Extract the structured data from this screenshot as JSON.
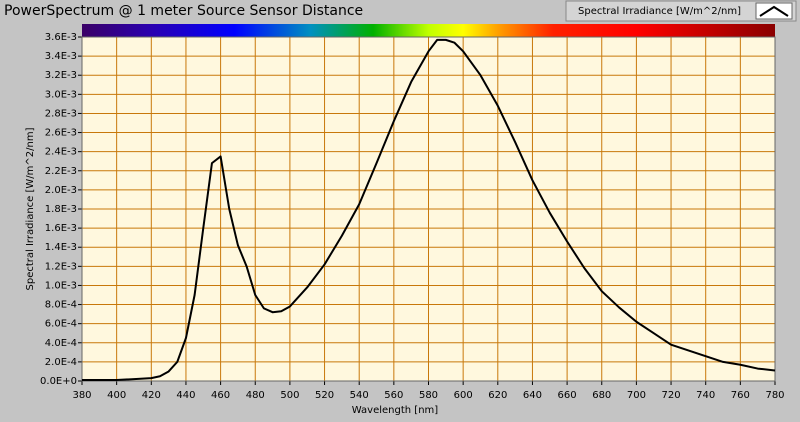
{
  "chart_data": {
    "type": "line",
    "title": "PowerSpectrum @ 1 meter Source Sensor Distance",
    "xlabel": "Wavelength [nm]",
    "ylabel": "Spectral Irradiance [W/m^2/nm]",
    "x": [
      380,
      390,
      400,
      410,
      420,
      425,
      430,
      435,
      440,
      445,
      450,
      455,
      460,
      465,
      470,
      475,
      480,
      485,
      490,
      495,
      500,
      510,
      520,
      530,
      540,
      550,
      560,
      570,
      580,
      585,
      590,
      595,
      600,
      610,
      620,
      630,
      640,
      650,
      660,
      670,
      680,
      690,
      700,
      710,
      720,
      730,
      740,
      750,
      760,
      770,
      780
    ],
    "series": [
      {
        "name": "Spectral Irradiance [W/m^2/nm]",
        "color": "#000000",
        "values": [
          1e-05,
          1e-05,
          1e-05,
          2e-05,
          3e-05,
          5e-05,
          0.0001,
          0.0002,
          0.00045,
          0.0009,
          0.0016,
          0.00228,
          0.00235,
          0.0018,
          0.00142,
          0.0012,
          0.0009,
          0.00076,
          0.00072,
          0.00073,
          0.00078,
          0.00098,
          0.00122,
          0.00152,
          0.00185,
          0.00228,
          0.00272,
          0.00313,
          0.00345,
          0.00357,
          0.00357,
          0.00354,
          0.00345,
          0.0032,
          0.00288,
          0.0025,
          0.0021,
          0.00176,
          0.00146,
          0.00118,
          0.00094,
          0.00077,
          0.00062,
          0.0005,
          0.00038,
          0.00032,
          0.00026,
          0.0002,
          0.00017,
          0.00013,
          0.00011
        ]
      }
    ],
    "xlim": [
      380,
      780
    ],
    "xticks": [
      380,
      400,
      420,
      440,
      460,
      480,
      500,
      520,
      540,
      560,
      580,
      600,
      620,
      640,
      660,
      680,
      700,
      720,
      740,
      760,
      780
    ],
    "ylim": [
      0,
      0.0036
    ],
    "yticks": [
      {
        "value": 0,
        "label": "0.0E+0"
      },
      {
        "value": 0.0002,
        "label": "2.0E-4"
      },
      {
        "value": 0.0004,
        "label": "4.0E-4"
      },
      {
        "value": 0.0006,
        "label": "6.0E-4"
      },
      {
        "value": 0.0008,
        "label": "8.0E-4"
      },
      {
        "value": 0.001,
        "label": "1.0E-3"
      },
      {
        "value": 0.0012,
        "label": "1.2E-3"
      },
      {
        "value": 0.0014,
        "label": "1.4E-3"
      },
      {
        "value": 0.0016,
        "label": "1.6E-3"
      },
      {
        "value": 0.0018,
        "label": "1.8E-3"
      },
      {
        "value": 0.002,
        "label": "2.0E-3"
      },
      {
        "value": 0.0022,
        "label": "2.2E-3"
      },
      {
        "value": 0.0024,
        "label": "2.4E-3"
      },
      {
        "value": 0.0026,
        "label": "2.6E-3"
      },
      {
        "value": 0.0028,
        "label": "2.8E-3"
      },
      {
        "value": 0.003,
        "label": "3.0E-3"
      },
      {
        "value": 0.0032,
        "label": "3.2E-3"
      },
      {
        "value": 0.0034,
        "label": "3.4E-3"
      },
      {
        "value": 0.0036,
        "label": "3.6E-3"
      }
    ],
    "grid": true
  }
}
